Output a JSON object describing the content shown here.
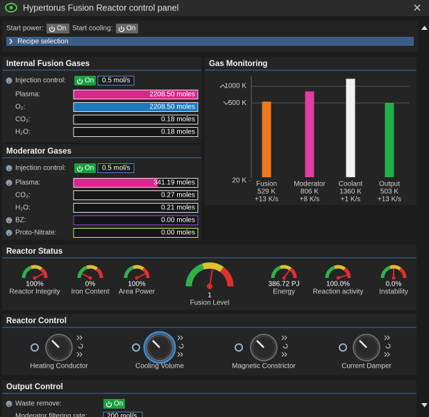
{
  "window": {
    "title": "Hypertorus Fusion Reactor control panel"
  },
  "top": {
    "start_power": {
      "label": "Start power:",
      "button": "On"
    },
    "start_cooling": {
      "label": "Start cooling:",
      "button": "On"
    },
    "recipe": "Recipe selection"
  },
  "fusion_gases": {
    "title": "Internal Fusion Gases",
    "injection": {
      "label": "Injection control:",
      "button": "On",
      "rate": "0.5 mol/s"
    },
    "gases": [
      {
        "name": "Plasma:",
        "amount": "2208.50 moles"
      },
      {
        "name": "O₂:",
        "amount": "2208.50 moles"
      },
      {
        "name": "CO₂:",
        "amount": "0.18 moles"
      },
      {
        "name": "H₂O:",
        "amount": "0.18 moles"
      }
    ]
  },
  "moderator_gases": {
    "title": "Moderator Gases",
    "injection": {
      "label": "Injection control:",
      "button": "On",
      "rate": "0.5 mol/s"
    },
    "gases": [
      {
        "name": "Plasma:",
        "amount": "341.19 moles"
      },
      {
        "name": "CO₂:",
        "amount": "0.27 moles"
      },
      {
        "name": "H₂O:",
        "amount": "0.21 moles"
      },
      {
        "name": "BZ:",
        "amount": "0.00 moles"
      },
      {
        "name": "Proto-Nitrate:",
        "amount": "0.00 moles"
      }
    ]
  },
  "chart_data": {
    "type": "bar",
    "title": "Gas Monitoring",
    "categories": [
      "Fusion",
      "Moderator",
      "Coolant",
      "Output"
    ],
    "values": [
      529,
      806,
      1360,
      503
    ],
    "value_labels": [
      "529 K",
      "806 K",
      "1360 K",
      "503 K"
    ],
    "rates": [
      "+13 K/s",
      "+8 K/s",
      "+1 K/s",
      "+13 K/s"
    ],
    "colors": [
      "#f07a1e",
      "#e03ea0",
      "#f2f2f2",
      "#1fb04a"
    ],
    "ylim": [
      20,
      1500
    ],
    "yticks": [
      {
        "value": 20,
        "label": "20 K"
      },
      {
        "value": 500,
        "label": "500 K"
      },
      {
        "value": 1000,
        "label": "1000 K"
      }
    ],
    "log_scale": true,
    "grid": true
  },
  "reactor_status": {
    "title": "Reactor Status",
    "gauges": [
      {
        "value": "100%",
        "label": "Reactor Integrity"
      },
      {
        "value": "0%",
        "label": "Iron Content"
      },
      {
        "value": "100%",
        "label": "Area Power"
      },
      {
        "value": "1",
        "label": "Fusion Level"
      },
      {
        "value": "386.72 PJ",
        "label": "Energy"
      },
      {
        "value": "100.0%",
        "label": "Reaction activity"
      },
      {
        "value": "0.0%",
        "label": "Instability"
      }
    ]
  },
  "reactor_control": {
    "title": "Reactor Control",
    "knobs": [
      "Heating Conductor",
      "Cooling Volume",
      "Magnetic Constrictor",
      "Current Damper"
    ]
  },
  "output_control": {
    "title": "Output Control",
    "waste": {
      "label": "Waste remove:",
      "button": "On"
    },
    "filter": {
      "label": "Moderator filtering rate:",
      "rate": "200 mol/s"
    }
  }
}
